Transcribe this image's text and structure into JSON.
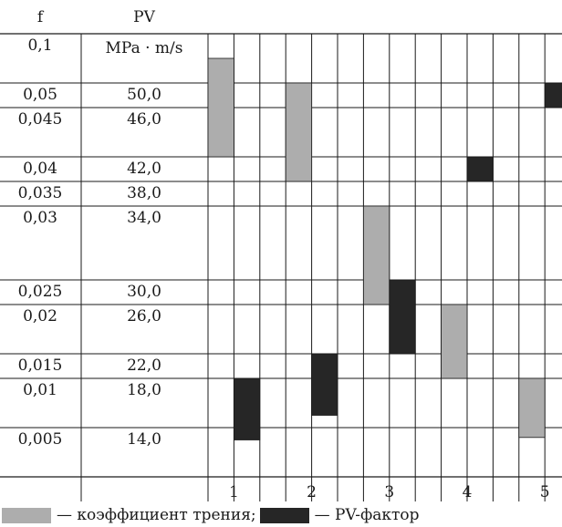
{
  "chart_data": {
    "type": "bar",
    "header": {
      "f": "f",
      "pv": "PV",
      "pv_unit": "MPa · m/s"
    },
    "rows": [
      {
        "f": "0,1",
        "pv": ""
      },
      {
        "f": "0,05",
        "pv": "50,0"
      },
      {
        "f": "0,045",
        "pv": "46,0"
      },
      {
        "f": "0,04",
        "pv": "42,0"
      },
      {
        "f": "0,035",
        "pv": "38,0"
      },
      {
        "f": "0,03",
        "pv": "34,0"
      },
      {
        "f": "0,025",
        "pv": "30,0"
      },
      {
        "f": "0,02",
        "pv": "26,0"
      },
      {
        "f": "0,015",
        "pv": "22,0"
      },
      {
        "f": "0,01",
        "pv": "18,0"
      },
      {
        "f": "0,005",
        "pv": "14,0"
      }
    ],
    "categories": [
      "1",
      "2",
      "3",
      "4",
      "5"
    ],
    "series": [
      {
        "name": "коэффициент трения",
        "color": "#adadad",
        "ranges": [
          [
            0.04,
            0.1
          ],
          [
            0.035,
            0.05
          ],
          [
            0.02,
            0.03
          ],
          [
            0.01,
            0.02
          ],
          [
            0.004,
            0.01
          ]
        ]
      },
      {
        "name": "PV-фактор",
        "color": "#262626",
        "ranges": [
          [
            13,
            18
          ],
          [
            15,
            22
          ],
          [
            22,
            30
          ],
          [
            38,
            42
          ],
          [
            46,
            50
          ]
        ]
      }
    ],
    "legend": {
      "friction_label": "— коэффициент трения;",
      "pv_label": "— PV-фактор"
    }
  }
}
